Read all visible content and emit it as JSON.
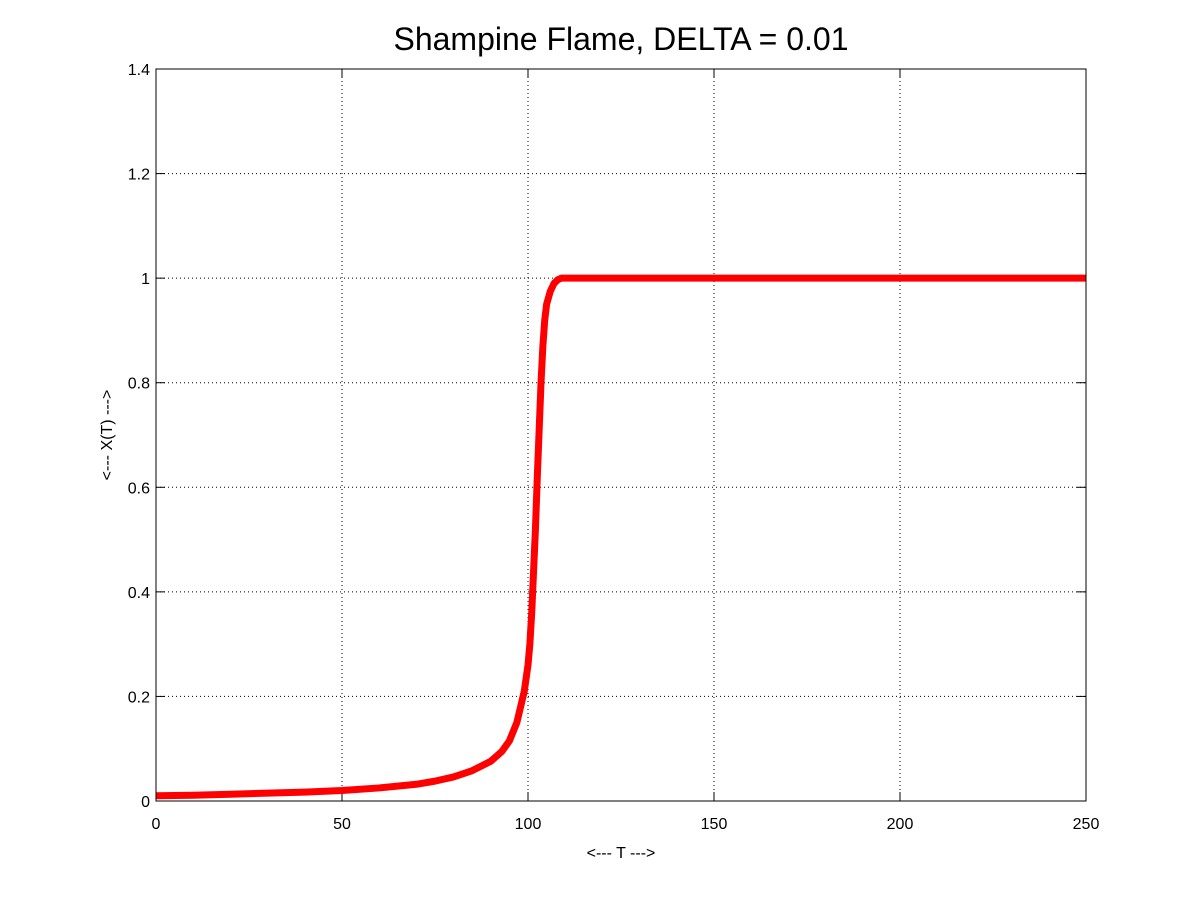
{
  "chart_data": {
    "type": "line",
    "title": "Shampine Flame, DELTA = 0.01",
    "xlabel": "<--- T --->",
    "ylabel": "<--- X(T) --->",
    "xlim": [
      0,
      250
    ],
    "ylim": [
      0,
      1.4
    ],
    "xticks": [
      "0",
      "50",
      "100",
      "150",
      "200",
      "250"
    ],
    "yticks": [
      "0",
      "0.2",
      "0.4",
      "0.6",
      "0.8",
      "1",
      "1.2",
      "1.4"
    ],
    "grid": true,
    "series": [
      {
        "color": "#ff0000",
        "x": [
          0,
          10,
          20,
          30,
          40,
          50,
          60,
          70,
          75,
          80,
          85,
          90,
          93,
          95,
          97,
          98,
          99,
          100,
          100.5,
          101,
          101.5,
          102,
          102.5,
          103,
          103.5,
          104,
          104.5,
          105,
          106,
          107,
          108,
          109,
          110,
          112,
          115,
          120,
          130,
          140,
          150,
          160,
          170,
          180,
          190,
          200,
          210,
          220,
          230,
          240,
          250
        ],
        "y": [
          0.01,
          0.011,
          0.013,
          0.015,
          0.017,
          0.02,
          0.025,
          0.032,
          0.038,
          0.046,
          0.058,
          0.076,
          0.095,
          0.115,
          0.15,
          0.18,
          0.21,
          0.26,
          0.3,
          0.36,
          0.44,
          0.52,
          0.62,
          0.71,
          0.8,
          0.87,
          0.92,
          0.95,
          0.975,
          0.99,
          0.997,
          1.0,
          1.0,
          1.0,
          1.0,
          1.0,
          1.0,
          1.0,
          1.0,
          1.0,
          1.0,
          1.0,
          1.0,
          1.0,
          1.0,
          1.0,
          1.0,
          1.0,
          1.0
        ]
      }
    ]
  }
}
